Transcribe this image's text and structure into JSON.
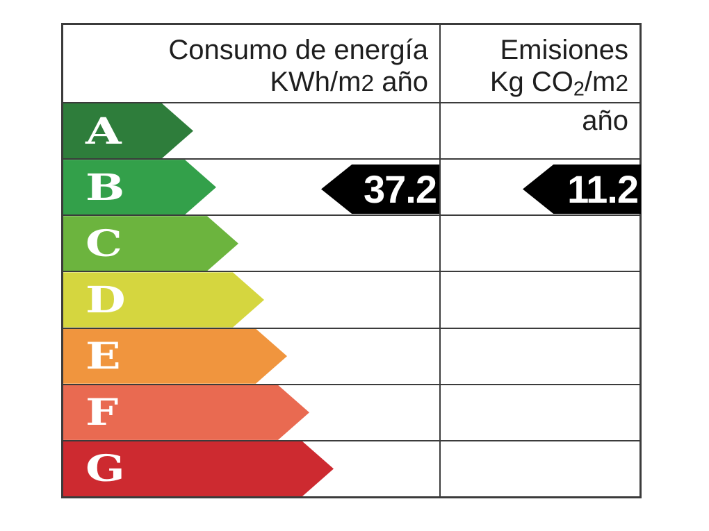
{
  "header": {
    "consumption": {
      "line1": "Consumo de energía",
      "line2_pre": "KWh/m",
      "line2_digit": "2",
      "line2_post": " año"
    },
    "emissions": {
      "line1": "Emisiones",
      "line2_pre": "Kg CO",
      "line2_sub": "2",
      "line2_mid": "/m",
      "line2_digit": "2",
      "line2_post": " año"
    }
  },
  "scale": {
    "tip_w": 45,
    "grades": [
      {
        "letter": "A",
        "color": "#2e7d3b",
        "body_w": 142
      },
      {
        "letter": "B",
        "color": "#33a04a",
        "body_w": 175
      },
      {
        "letter": "C",
        "color": "#6cb43e",
        "body_w": 207
      },
      {
        "letter": "D",
        "color": "#d5d63f",
        "body_w": 244
      },
      {
        "letter": "E",
        "color": "#f0953e",
        "body_w": 277
      },
      {
        "letter": "F",
        "color": "#e96a51",
        "body_w": 309
      },
      {
        "letter": "G",
        "color": "#cd2a30",
        "body_w": 344
      }
    ]
  },
  "ratings": {
    "rated_grade": "B",
    "consumption_value": "37.2",
    "emissions_value": "11.2",
    "arrow_color": "#000000",
    "value_text_color": "#ffffff"
  },
  "colors": {
    "border": "#3b3b3b",
    "header_text": "#1e1e1e",
    "background": "#ffffff"
  },
  "chart_data": {
    "type": "bar",
    "orientation": "horizontal",
    "categories": [
      "A",
      "B",
      "C",
      "D",
      "E",
      "F",
      "G"
    ],
    "bar_colors": [
      "#2e7d3b",
      "#33a04a",
      "#6cb43e",
      "#d5d63f",
      "#f0953e",
      "#e96a51",
      "#cd2a30"
    ],
    "bar_relative_lengths": [
      187,
      220,
      252,
      289,
      322,
      354,
      389
    ],
    "series": [
      {
        "name": "Consumo de energía KWh/m2 año",
        "rated_grade": "B",
        "value": 37.2
      },
      {
        "name": "Emisiones Kg CO2/m2 año",
        "rated_grade": "B",
        "value": 11.2
      }
    ],
    "legend": "none",
    "grid": "table borders only"
  }
}
